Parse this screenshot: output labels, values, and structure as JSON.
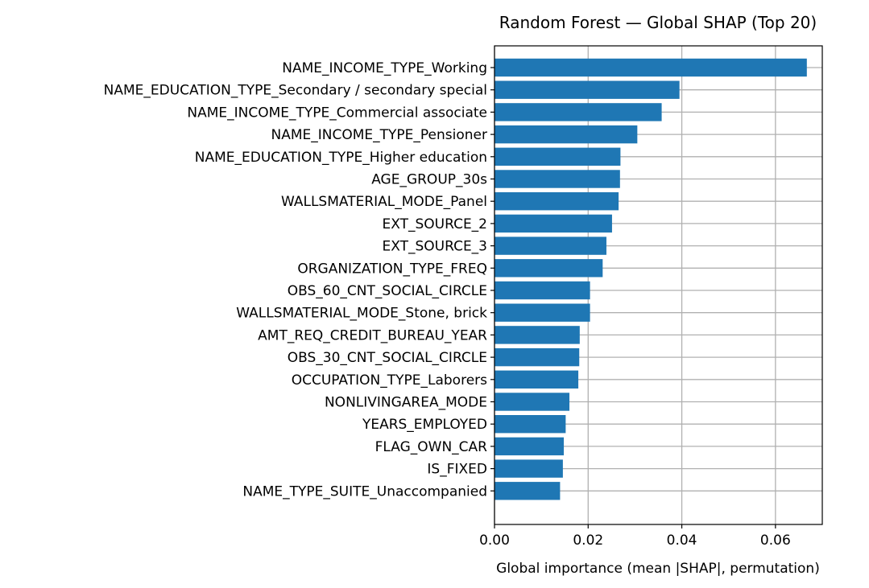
{
  "chart_data": {
    "type": "bar",
    "orientation": "horizontal",
    "title": "Random Forest — Global SHAP (Top 20)",
    "xlabel": "Global importance (mean |SHAP|, permutation)",
    "ylabel": "",
    "xlim": [
      0,
      0.07
    ],
    "xticks": [
      0.0,
      0.02,
      0.04,
      0.06
    ],
    "xtick_labels": [
      "0.00",
      "0.02",
      "0.04",
      "0.06"
    ],
    "grid": true,
    "bar_color": "#1f77b4",
    "categories": [
      "NAME_INCOME_TYPE_Working",
      "NAME_EDUCATION_TYPE_Secondary / secondary special",
      "NAME_INCOME_TYPE_Commercial associate",
      "NAME_INCOME_TYPE_Pensioner",
      "NAME_EDUCATION_TYPE_Higher education",
      "AGE_GROUP_30s",
      "WALLSMATERIAL_MODE_Panel",
      "EXT_SOURCE_2",
      "EXT_SOURCE_3",
      "ORGANIZATION_TYPE_FREQ",
      "OBS_60_CNT_SOCIAL_CIRCLE",
      "WALLSMATERIAL_MODE_Stone, brick",
      "AMT_REQ_CREDIT_BUREAU_YEAR",
      "OBS_30_CNT_SOCIAL_CIRCLE",
      "OCCUPATION_TYPE_Laborers",
      "NONLIVINGAREA_MODE",
      "YEARS_EMPLOYED",
      "FLAG_OWN_CAR",
      "IS_FIXED",
      "NAME_TYPE_SUITE_Unaccompanied"
    ],
    "values": [
      0.0667,
      0.0395,
      0.0357,
      0.0305,
      0.0269,
      0.0268,
      0.0265,
      0.0251,
      0.0239,
      0.0231,
      0.0204,
      0.0204,
      0.0182,
      0.0181,
      0.0179,
      0.016,
      0.0152,
      0.0148,
      0.0146,
      0.014
    ]
  }
}
